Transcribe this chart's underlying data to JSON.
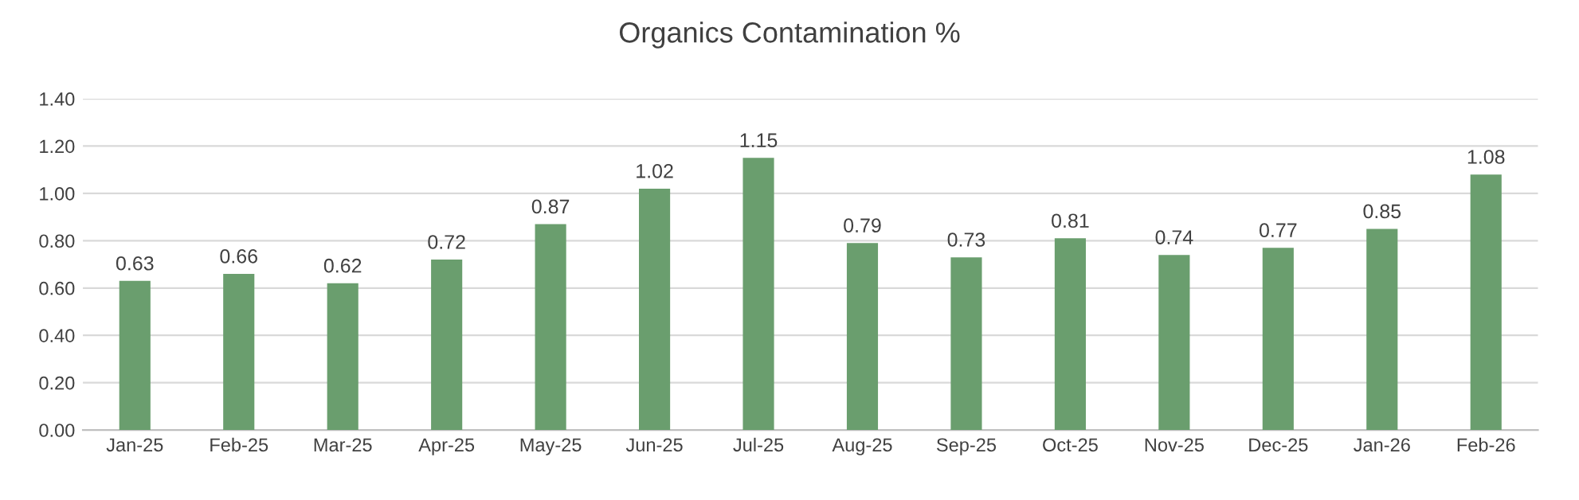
{
  "chart_data": {
    "type": "bar",
    "title": "Organics Contamination %",
    "categories": [
      "Jan-25",
      "Feb-25",
      "Mar-25",
      "Apr-25",
      "May-25",
      "Jun-25",
      "Jul-25",
      "Aug-25",
      "Sep-25",
      "Oct-25",
      "Nov-25",
      "Dec-25",
      "Jan-26",
      "Feb-26"
    ],
    "series": [
      {
        "color": "#6a9e6e",
        "values": [
          0.63,
          0.66,
          0.62,
          0.72,
          0.87,
          1.02,
          1.15,
          0.79,
          0.73,
          0.81,
          0.74,
          0.77,
          0.85,
          1.08
        ]
      }
    ],
    "ylim": [
      0,
      1.4
    ],
    "yticks": [
      {
        "value": 0,
        "label": "0.00"
      },
      {
        "value": 0.2,
        "label": "0.20"
      },
      {
        "value": 0.4,
        "label": "0.40"
      },
      {
        "value": 0.6,
        "label": "0.60"
      },
      {
        "value": 0.8,
        "label": "0.80"
      },
      {
        "value": 1.0,
        "label": "1.00"
      },
      {
        "value": 1.2,
        "label": "1.20"
      },
      {
        "value": 1.4,
        "label": "1.40"
      }
    ],
    "grid": "y",
    "data_labels": true
  }
}
